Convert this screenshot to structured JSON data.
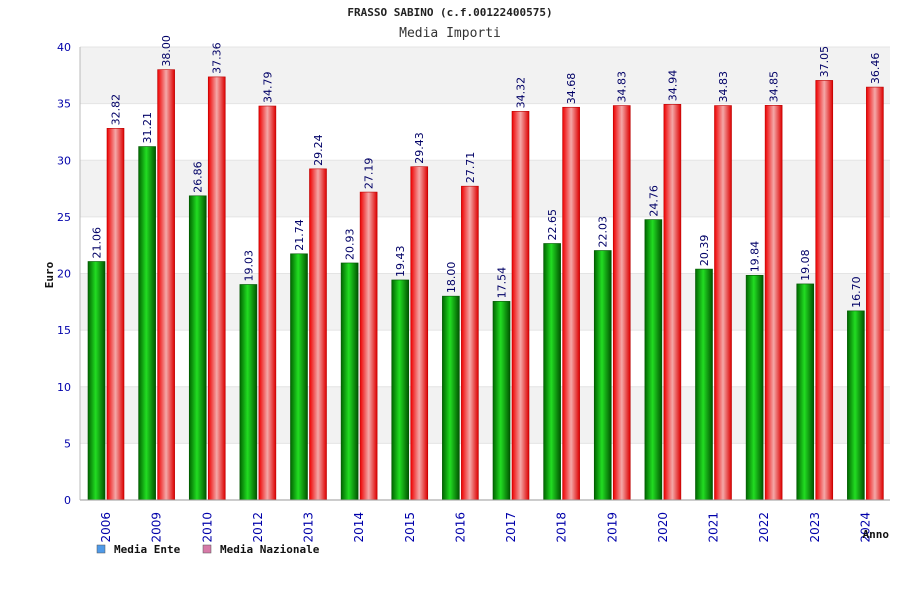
{
  "chart_data": {
    "type": "bar",
    "title": "FRASSO SABINO (c.f.00122400575)",
    "subtitle": "Media Importi",
    "xlabel": "Anno",
    "ylabel": "Euro",
    "ylim": [
      0,
      40
    ],
    "yticks": [
      "0",
      "5",
      "10",
      "15",
      "20",
      "25",
      "30",
      "35",
      "40"
    ],
    "categories": [
      "2006",
      "2009",
      "2010",
      "2012",
      "2013",
      "2014",
      "2015",
      "2016",
      "2017",
      "2018",
      "2019",
      "2020",
      "2021",
      "2022",
      "2023",
      "2024"
    ],
    "series": [
      {
        "name": "Media Ente",
        "color": "#00aa00",
        "legend_color": "#4f9ae8",
        "values": [
          21.06,
          31.21,
          26.86,
          19.03,
          21.74,
          20.93,
          19.43,
          18.0,
          17.54,
          22.65,
          22.03,
          24.76,
          20.39,
          19.84,
          19.08,
          16.7
        ],
        "labels": [
          "21.06",
          "31.21",
          "26.86",
          "19.03",
          "21.74",
          "20.93",
          "19.43",
          "18.00",
          "17.54",
          "22.65",
          "22.03",
          "24.76",
          "20.39",
          "19.84",
          "19.08",
          "16.70"
        ]
      },
      {
        "name": "Media Nazionale",
        "color": "#ee1111",
        "legend_color": "#d77aa8",
        "values": [
          32.82,
          38.0,
          37.36,
          34.79,
          29.24,
          27.19,
          29.43,
          27.71,
          34.32,
          34.68,
          34.83,
          34.94,
          34.83,
          34.85,
          37.05,
          36.46
        ],
        "labels": [
          "32.82",
          "38.00",
          "37.36",
          "34.79",
          "29.24",
          "27.19",
          "29.43",
          "27.71",
          "34.32",
          "34.68",
          "34.83",
          "34.94",
          "34.83",
          "34.85",
          "37.05",
          "36.46"
        ]
      }
    ],
    "grid": true,
    "legend": "bottom-left"
  }
}
